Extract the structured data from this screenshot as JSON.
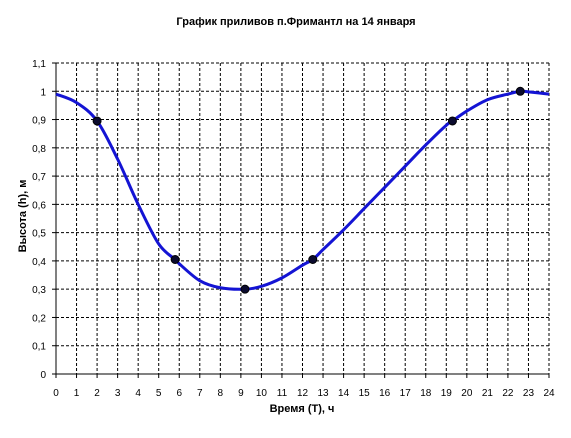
{
  "chart_data": {
    "type": "line",
    "title": "График приливов п.Фримантл на 14 января",
    "xlabel": "Время (T), ч",
    "ylabel": "Высота (h), м",
    "xlim": [
      0,
      24
    ],
    "ylim": [
      0,
      1.1
    ],
    "x_ticks": [
      "0",
      "1",
      "2",
      "3",
      "4",
      "5",
      "6",
      "7",
      "8",
      "9",
      "10",
      "11",
      "12",
      "13",
      "14",
      "15",
      "16",
      "17",
      "18",
      "19",
      "20",
      "21",
      "22",
      "23",
      "24"
    ],
    "y_ticks": [
      "0",
      "0,1",
      "0,2",
      "0,3",
      "0,4",
      "0,5",
      "0,6",
      "0,7",
      "0,8",
      "0,9",
      "1",
      "1,1"
    ],
    "grid": true,
    "series": [
      {
        "color": "#1414d4",
        "curve": {
          "x": [
            0,
            1,
            2,
            3,
            4,
            5,
            5.8,
            6,
            7,
            8,
            9.2,
            10,
            11,
            12,
            12.5,
            13,
            14,
            15,
            16,
            17,
            18,
            19,
            19.3,
            20,
            21,
            22,
            22.6,
            23,
            24
          ],
          "y": [
            0.99,
            0.96,
            0.895,
            0.76,
            0.6,
            0.46,
            0.405,
            0.39,
            0.33,
            0.305,
            0.3,
            0.31,
            0.34,
            0.385,
            0.405,
            0.44,
            0.51,
            0.585,
            0.66,
            0.735,
            0.81,
            0.88,
            0.895,
            0.93,
            0.97,
            0.99,
            1.0,
            0.998,
            0.99
          ]
        },
        "markers": {
          "x": [
            2,
            5.8,
            9.2,
            12.5,
            19.3,
            22.6
          ],
          "y": [
            0.895,
            0.405,
            0.3,
            0.405,
            0.895,
            1.0
          ]
        }
      }
    ]
  }
}
